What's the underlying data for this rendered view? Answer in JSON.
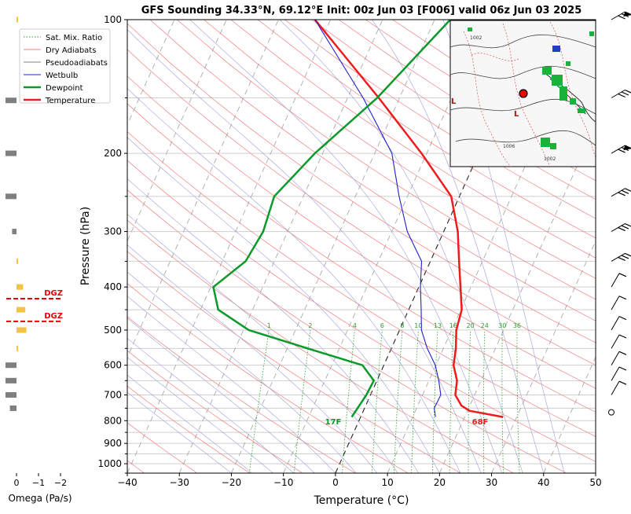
{
  "chart_data": {
    "type": "skew-t",
    "title": "GFS Sounding 34.33°N, 69.12°E Init: 00z Jun 03 [F006] valid 06z Jun 03 2025",
    "xlabel": "Temperature (°C)",
    "ylabel": "Pressure (hPa)",
    "xlim": [
      -40,
      50
    ],
    "ylim": [
      1050,
      100
    ],
    "y_scale": "log",
    "grid": true,
    "x_ticks": [
      "−40",
      "−30",
      "−20",
      "−10",
      "0",
      "10",
      "20",
      "30",
      "40",
      "50"
    ],
    "y_ticks": [
      "100",
      "200",
      "300",
      "400",
      "500",
      "600",
      "700",
      "800",
      "900",
      "1000"
    ],
    "legend": {
      "position": "top-left",
      "entries": [
        {
          "label": "Sat. Mix. Ratio",
          "color": "#2ca02c",
          "style": "dotted"
        },
        {
          "label": "Dry Adiabats",
          "color": "#f08080",
          "style": "solid"
        },
        {
          "label": "Pseudoadiabats",
          "color": "#808080",
          "style": "solid"
        },
        {
          "label": "Wetbulb",
          "color": "#1f1fcf",
          "style": "solid"
        },
        {
          "label": "Dewpoint",
          "color": "#0a9a2a",
          "style": "solid"
        },
        {
          "label": "Temperature",
          "color": "#ee1c1c",
          "style": "solid"
        }
      ]
    },
    "series": [
      {
        "name": "Temperature",
        "color": "#ee1c1c",
        "points": [
          [
            785,
            27.4
          ],
          [
            760,
            20.4
          ],
          [
            740,
            18.4
          ],
          [
            700,
            16.3
          ],
          [
            650,
            15.4
          ],
          [
            600,
            13.4
          ],
          [
            550,
            12.4
          ],
          [
            500,
            10.9
          ],
          [
            450,
            10.2
          ],
          [
            400,
            8.0
          ],
          [
            350,
            5.5
          ],
          [
            300,
            2.7
          ],
          [
            250,
            -1.6
          ],
          [
            200,
            -11.0
          ],
          [
            150,
            -24.0
          ],
          [
            100,
            -43.0
          ]
        ]
      },
      {
        "name": "Wetbulb",
        "color": "#1f1fcf",
        "points": [
          [
            785,
            14.4
          ],
          [
            750,
            13.4
          ],
          [
            700,
            13.5
          ],
          [
            650,
            11.9
          ],
          [
            600,
            9.9
          ],
          [
            550,
            6.9
          ],
          [
            500,
            4.2
          ],
          [
            450,
            2.4
          ],
          [
            400,
            0.3
          ],
          [
            350,
            -1.7
          ],
          [
            300,
            -7.0
          ],
          [
            250,
            -11.6
          ],
          [
            200,
            -16.7
          ],
          [
            150,
            -27.0
          ],
          [
            100,
            -43.0
          ]
        ]
      },
      {
        "name": "Dewpoint",
        "color": "#0a9a2a",
        "points": [
          [
            785,
            -1.7
          ],
          [
            700,
            -0.8
          ],
          [
            650,
            -0.6
          ],
          [
            600,
            -4.1
          ],
          [
            550,
            -16.1
          ],
          [
            500,
            -29.0
          ],
          [
            450,
            -36.6
          ],
          [
            400,
            -39.5
          ],
          [
            350,
            -35.5
          ],
          [
            300,
            -34.7
          ],
          [
            250,
            -35.6
          ],
          [
            200,
            -31.5
          ],
          [
            150,
            -24.3
          ],
          [
            100,
            -17.0
          ]
        ]
      }
    ],
    "sat_mix_ratio_labels": [
      "1",
      "2",
      "4",
      "6",
      "8",
      "10",
      "13",
      "16",
      "20",
      "24",
      "30",
      "36"
    ],
    "surface_labels": {
      "temperature": "68F",
      "dewpoint": "17F"
    },
    "omega_panel": {
      "xlabel": "Omega (Pa/s)",
      "ticks": [
        "0",
        "−1",
        "−2"
      ],
      "dgz_label": "DGZ",
      "dgz_pressures": [
        425,
        478
      ],
      "bars": [
        {
          "p": 100,
          "omega": -0.05,
          "color": "#f5c242"
        },
        {
          "p": 152,
          "omega": 0.5,
          "color": "#7f7f7f"
        },
        {
          "p": 200,
          "omega": 0.5,
          "color": "#7f7f7f"
        },
        {
          "p": 250,
          "omega": 0.5,
          "color": "#7f7f7f"
        },
        {
          "p": 300,
          "omega": 0.2,
          "color": "#7f7f7f"
        },
        {
          "p": 350,
          "omega": -0.05,
          "color": "#f5c242"
        },
        {
          "p": 400,
          "omega": -0.3,
          "color": "#f5c242"
        },
        {
          "p": 450,
          "omega": -0.4,
          "color": "#f5c242"
        },
        {
          "p": 500,
          "omega": -0.45,
          "color": "#f5c242"
        },
        {
          "p": 550,
          "omega": -0.05,
          "color": "#f5c242"
        },
        {
          "p": 600,
          "omega": 0.5,
          "color": "#7f7f7f"
        },
        {
          "p": 650,
          "omega": 0.5,
          "color": "#7f7f7f"
        },
        {
          "p": 700,
          "omega": 0.5,
          "color": "#7f7f7f"
        },
        {
          "p": 750,
          "omega": 0.3,
          "color": "#7f7f7f"
        }
      ]
    },
    "wind_barb_pressures": [
      100,
      150,
      200,
      250,
      300,
      350,
      400,
      450,
      500,
      550,
      600,
      650,
      700,
      785
    ],
    "inset_map_labels": [
      "1002",
      "1006",
      "1002"
    ]
  }
}
